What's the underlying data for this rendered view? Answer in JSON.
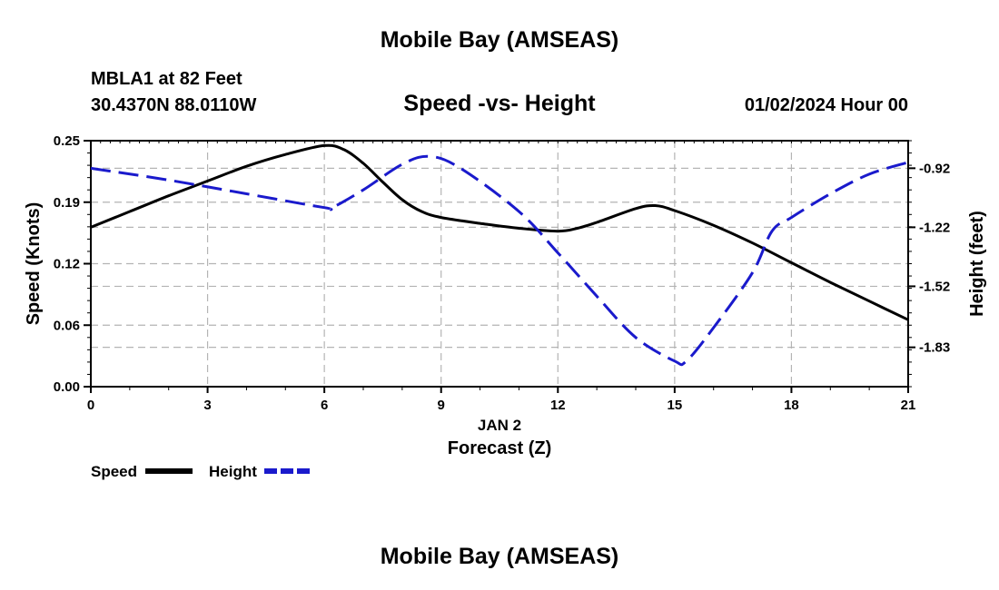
{
  "header": {
    "title": "Mobile Bay (AMSEAS)",
    "station": "MBLA1 at 82 Feet",
    "coords": "30.4370N  88.0110W",
    "subtitle": "Speed -vs- Height",
    "datetime": "01/02/2024 Hour 00"
  },
  "footer": {
    "title": "Mobile Bay (AMSEAS)"
  },
  "colors": {
    "speed": "#000000",
    "height": "#1a1acc",
    "grid": "#b4b4b4"
  },
  "chart_data": {
    "type": "line",
    "title": "Speed -vs- Height",
    "xlabel": "Forecast (Z)",
    "xlabel_date": "JAN 2",
    "ylabel": "Speed (Knots)",
    "y2label": "Height (feet)",
    "xlim": [
      0,
      21
    ],
    "ylim": [
      0,
      0.25
    ],
    "y2lim": [
      -2.03,
      -0.78
    ],
    "x_ticks": [
      0,
      3,
      6,
      9,
      12,
      15,
      18,
      21
    ],
    "x_tick_labels": [
      "0",
      "3",
      "6",
      "9",
      "12",
      "15",
      "18",
      "21"
    ],
    "y_ticks": [
      0,
      0.0625,
      0.125,
      0.1875,
      0.25
    ],
    "y_tick_labels": [
      "0.00",
      "0.06",
      "0.12",
      "0.19",
      "0.25"
    ],
    "y2_ticks": [
      -1.83,
      -1.52,
      -1.22,
      -0.92
    ],
    "y2_tick_labels": [
      "-1.83",
      "-1.52",
      "-1.22",
      "-0.92"
    ],
    "grid": true,
    "legend": {
      "position": "bottom-left",
      "entries": [
        "Speed",
        "Height"
      ]
    },
    "series": [
      {
        "name": "Speed",
        "axis": "left",
        "style": "solid",
        "x": [
          0,
          1,
          2,
          3,
          4,
          5,
          6,
          6.5,
          7,
          7.5,
          8,
          8.5,
          9,
          10,
          11,
          12,
          12.5,
          13,
          14,
          14.5,
          15,
          16,
          17,
          18,
          19,
          20,
          21
        ],
        "y": [
          0.162,
          0.178,
          0.194,
          0.209,
          0.224,
          0.236,
          0.245,
          0.241,
          0.227,
          0.208,
          0.19,
          0.178,
          0.172,
          0.166,
          0.161,
          0.158,
          0.161,
          0.167,
          0.181,
          0.184,
          0.179,
          0.164,
          0.146,
          0.126,
          0.106,
          0.087,
          0.068
        ]
      },
      {
        "name": "Height",
        "axis": "right",
        "style": "dashed",
        "x": [
          0,
          2,
          4,
          6,
          6.2,
          7,
          8,
          8.7,
          9.5,
          11,
          12,
          13,
          14,
          15,
          15.3,
          16,
          17,
          17.5,
          18,
          19,
          20,
          21
        ],
        "y": [
          -0.92,
          -0.98,
          -1.05,
          -1.12,
          -1.12,
          -1.03,
          -0.9,
          -0.86,
          -0.92,
          -1.14,
          -1.35,
          -1.57,
          -1.78,
          -1.9,
          -1.9,
          -1.73,
          -1.45,
          -1.24,
          -1.17,
          -1.05,
          -0.95,
          -0.89
        ]
      }
    ]
  }
}
